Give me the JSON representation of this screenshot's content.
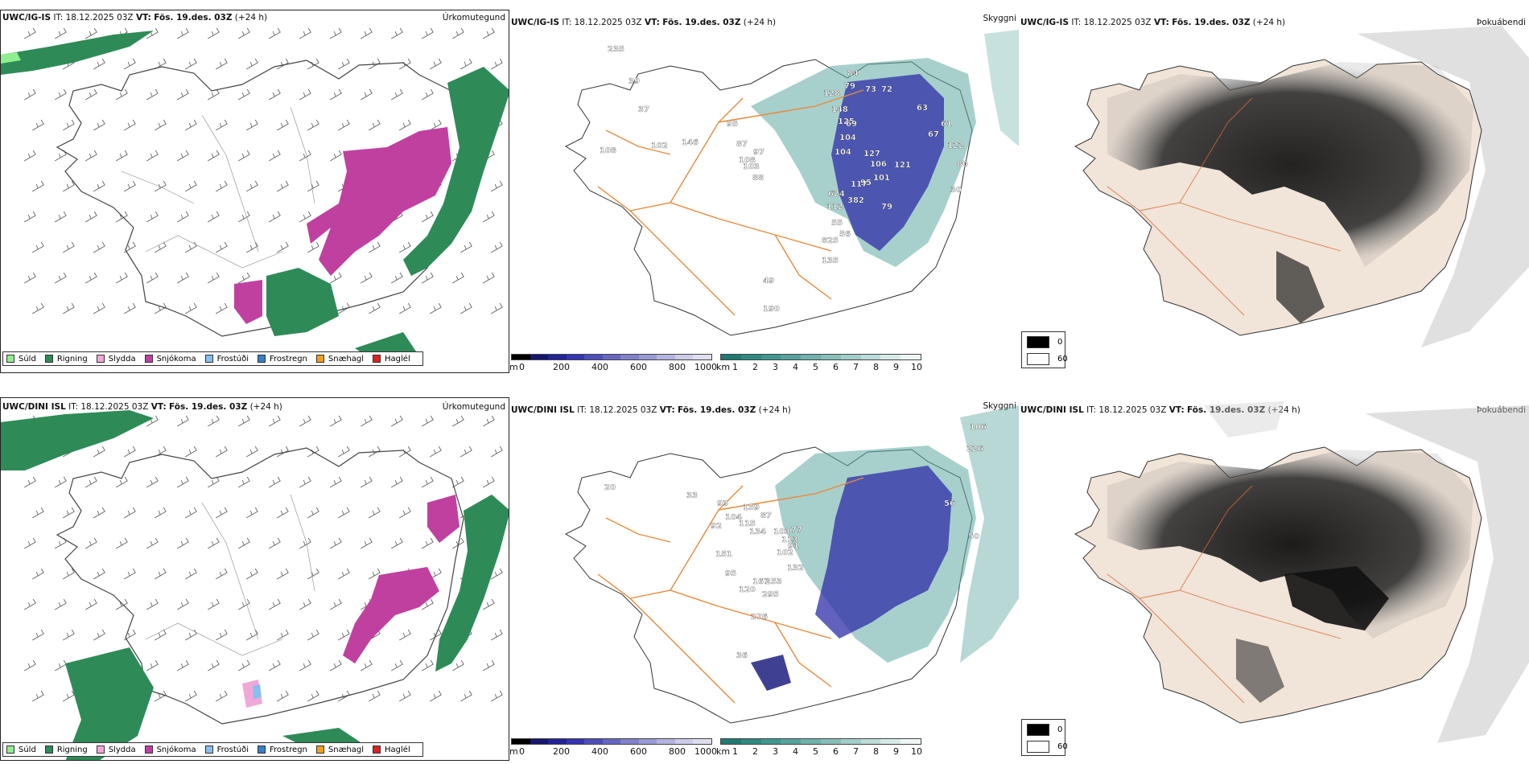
{
  "rows": [
    {
      "model": "UWC/IG-IS",
      "it_label": "IT:",
      "it_value": "18.12.2025 03Z",
      "vt_label": "VT:",
      "vt_value": "Fös. 19.des. 03Z",
      "lead": "(+24 h)",
      "precip_title": "Úrkomutegund",
      "vis_title": "Skyggni",
      "fog_title": "Þokuábendi",
      "station_values": [
        "235",
        "39",
        "37",
        "108",
        "102",
        "146",
        "95",
        "87",
        "108",
        "97",
        "103",
        "88",
        "84",
        "79",
        "73",
        "72",
        "128",
        "148",
        "125",
        "69",
        "104",
        "104",
        "127",
        "106",
        "117",
        "95",
        "101",
        "624",
        "382",
        "112",
        "79",
        "55",
        "56",
        "825",
        "135",
        "49",
        "190",
        "61",
        "122",
        "80",
        "63",
        "67",
        "121",
        "30"
      ]
    },
    {
      "model": "UWC/DINI ISL",
      "it_label": "IT:",
      "it_value": "18.12.2025 03Z",
      "vt_label": "VT:",
      "vt_value": "Fös. 19.des. 03Z",
      "lead": "(+24 h)",
      "precip_title": "Úrkomutegund",
      "vis_title": "Skyggni",
      "fog_title": "Þokuábendi",
      "station_values": [
        "20",
        "33",
        "92",
        "93",
        "104",
        "159",
        "115",
        "87",
        "134",
        "103",
        "77",
        "113",
        "102",
        "91",
        "132",
        "95",
        "120",
        "167",
        "253",
        "295",
        "276",
        "36",
        "226",
        "106",
        "56",
        "50",
        "151"
      ]
    }
  ],
  "precip_legend": [
    {
      "label": "Súld",
      "color": "#90ee90"
    },
    {
      "label": "Rigning",
      "color": "#2e8b57"
    },
    {
      "label": "Slydda",
      "color": "#f0a8d8"
    },
    {
      "label": "Snjókoma",
      "color": "#c040a0"
    },
    {
      "label": "Frostúði",
      "color": "#87bfee"
    },
    {
      "label": "Frostregn",
      "color": "#3a7fc8"
    },
    {
      "label": "Snæhagl",
      "color": "#f0a020"
    },
    {
      "label": "Haglél",
      "color": "#e02020"
    }
  ],
  "elev_bar": {
    "unit": "m",
    "ticks": [
      "0",
      "200",
      "400",
      "600",
      "800",
      "1000"
    ],
    "colors": [
      "#000000",
      "#161670",
      "#23239a",
      "#3434b4",
      "#4e4eba",
      "#6666c4",
      "#8080cc",
      "#9a9ad6",
      "#b4b4e0",
      "#cccce8",
      "#dedef0"
    ]
  },
  "vis_bar": {
    "unit": "km",
    "ticks": [
      "1",
      "2",
      "3",
      "4",
      "5",
      "6",
      "7",
      "8",
      "9",
      "10"
    ],
    "colors": [
      "#1f7a72",
      "#2e8a82",
      "#409690",
      "#56a39d",
      "#6fb1ab",
      "#88bfba",
      "#a2cdc9",
      "#bcdcd8",
      "#d6eae7",
      "#eef6f5"
    ]
  },
  "fog_legend": [
    {
      "label": "0",
      "color": "#000000"
    },
    {
      "label": "60",
      "color": "#ffffff"
    }
  ],
  "colors": {
    "snow": "#c040a0",
    "rain": "#2e8b57",
    "drizzle": "#90ee90",
    "road": "#e88a3a",
    "vis_teal": "#5fa9a2",
    "elev_blue": "#2e2ea8"
  }
}
